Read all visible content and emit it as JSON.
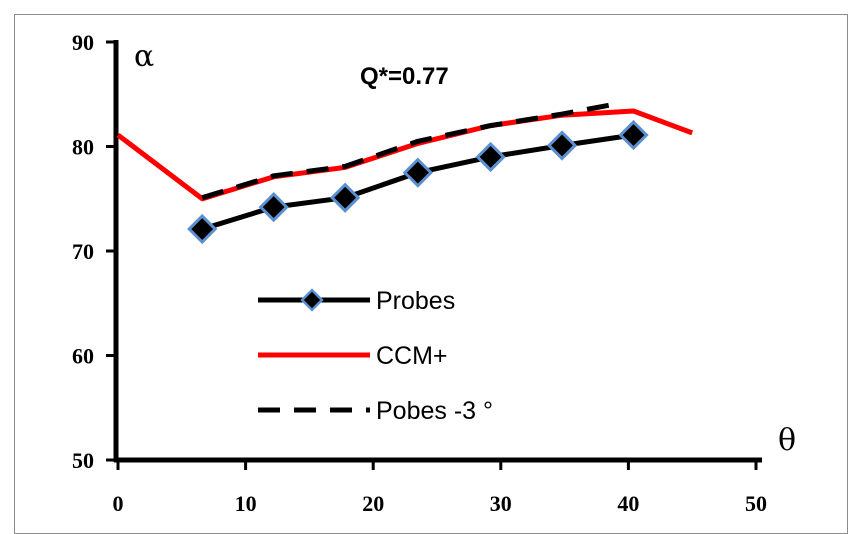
{
  "chart_data": {
    "type": "line",
    "title": "",
    "annotation": "Q*=0.77",
    "xlabel": "θ",
    "ylabel": "α",
    "xlim": [
      0,
      50
    ],
    "ylim": [
      50,
      90
    ],
    "x_ticks": [
      0,
      10,
      20,
      30,
      40,
      50
    ],
    "y_ticks": [
      50,
      60,
      70,
      80,
      90
    ],
    "grid": false,
    "legend_position": "center-left",
    "series": [
      {
        "name": "Probes",
        "style": "solid-with-diamond-markers",
        "color": "#000000",
        "marker_edge_color": "#5b8fd0",
        "x": [
          6.6,
          12.2,
          17.8,
          23.5,
          29.2,
          34.8,
          40.4
        ],
        "y": [
          72.1,
          74.2,
          75.1,
          77.5,
          79.0,
          80.1,
          81.1
        ]
      },
      {
        "name": "CCM+",
        "style": "solid",
        "color": "#ff0000",
        "x": [
          0,
          6.6,
          12.2,
          17.8,
          23.5,
          29.2,
          34.8,
          40.4,
          45.0
        ],
        "y": [
          81.1,
          75.0,
          77.1,
          78.0,
          80.3,
          82.0,
          83.0,
          83.4,
          81.3
        ]
      },
      {
        "name": "Pobes -3 °",
        "style": "dashed",
        "color": "#000000",
        "x": [
          6.6,
          12.2,
          17.8,
          23.5,
          29.2,
          34.8,
          38.7
        ],
        "y": [
          75.1,
          77.2,
          78.1,
          80.5,
          82.0,
          83.1,
          84.0
        ]
      }
    ]
  }
}
